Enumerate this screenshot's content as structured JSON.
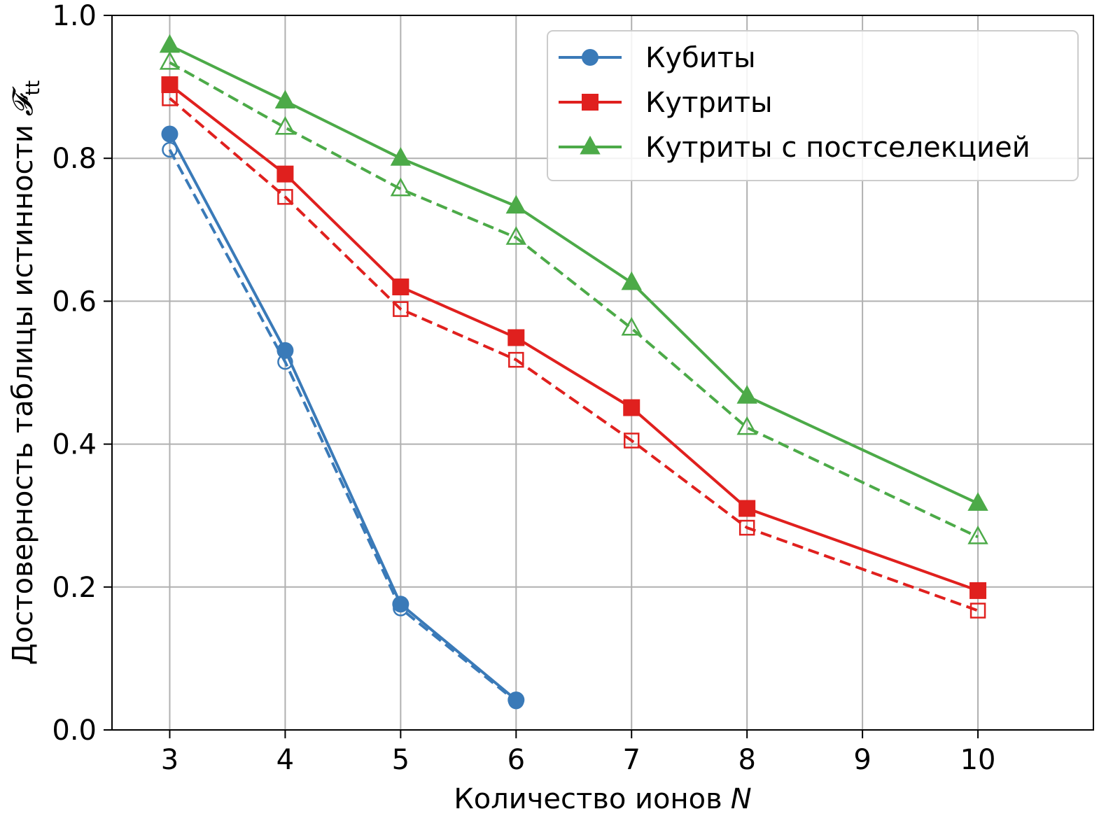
{
  "chart_data": {
    "type": "line",
    "xlabel": "Количество ионов",
    "xlabel_var": "N",
    "ylabel": "Достоверность таблицы истинности",
    "ylabel_symbol": "𝓕",
    "ylabel_sub": "tt",
    "xlim": [
      2.5,
      11.0
    ],
    "ylim": [
      0.0,
      1.0
    ],
    "xticks": [
      "3",
      "4",
      "5",
      "6",
      "7",
      "8",
      "9",
      "10"
    ],
    "yticks": [
      "0.0",
      "0.2",
      "0.4",
      "0.6",
      "0.8",
      "1.0"
    ],
    "grid": true,
    "legend_position": "top-right",
    "series": [
      {
        "name": "Кубиты",
        "color": "#3a7ab8",
        "marker": "circle",
        "linestyle": "solid",
        "in_legend": true,
        "x": [
          3,
          4,
          5,
          6
        ],
        "y": [
          0.834,
          0.531,
          0.176,
          0.042
        ]
      },
      {
        "color": "#3a7ab8",
        "marker": "circle-open",
        "linestyle": "dashed",
        "in_legend": false,
        "x": [
          3,
          4,
          5,
          6
        ],
        "y": [
          0.812,
          0.515,
          0.17,
          0.04
        ]
      },
      {
        "name": "Кутриты",
        "color": "#e0201e",
        "marker": "square",
        "linestyle": "solid",
        "in_legend": true,
        "x": [
          3,
          4,
          5,
          6,
          7,
          8,
          10
        ],
        "y": [
          0.903,
          0.778,
          0.62,
          0.549,
          0.451,
          0.31,
          0.195
        ]
      },
      {
        "color": "#e0201e",
        "marker": "square-open",
        "linestyle": "dashed",
        "in_legend": false,
        "x": [
          3,
          4,
          5,
          6,
          7,
          8,
          10
        ],
        "y": [
          0.884,
          0.746,
          0.589,
          0.518,
          0.405,
          0.283,
          0.167
        ]
      },
      {
        "name": "Кутриты с постселекцией",
        "color": "#4caa48",
        "marker": "triangle",
        "linestyle": "solid",
        "in_legend": true,
        "x": [
          3,
          4,
          5,
          6,
          7,
          8,
          10
        ],
        "y": [
          0.958,
          0.88,
          0.8,
          0.733,
          0.626,
          0.467,
          0.317
        ]
      },
      {
        "color": "#4caa48",
        "marker": "triangle-open",
        "linestyle": "dashed",
        "in_legend": false,
        "x": [
          3,
          4,
          5,
          6,
          7,
          8,
          10
        ],
        "y": [
          0.934,
          0.843,
          0.757,
          0.689,
          0.562,
          0.423,
          0.27
        ]
      }
    ]
  }
}
